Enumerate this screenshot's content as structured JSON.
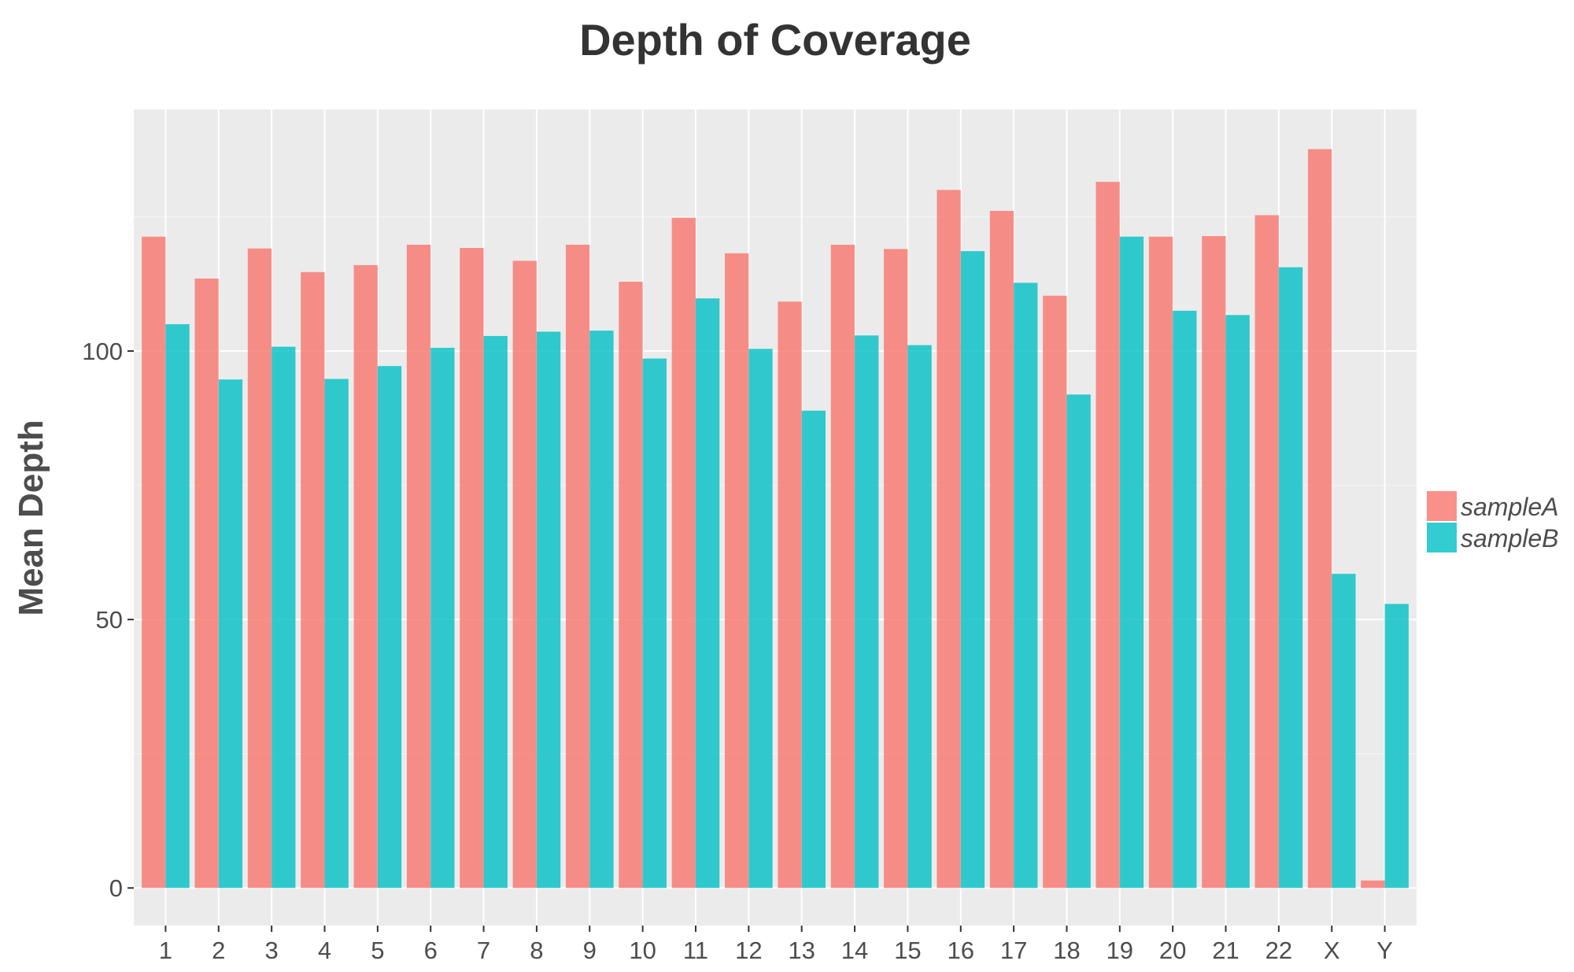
{
  "chart_data": {
    "type": "bar",
    "title": "Depth of Coverage",
    "xlabel": "",
    "ylabel": "Mean Depth",
    "ylim": [
      -7,
      145
    ],
    "yticks": [
      0,
      50,
      100
    ],
    "grid": true,
    "legend_position": "right",
    "categories": [
      "1",
      "2",
      "3",
      "4",
      "5",
      "6",
      "7",
      "8",
      "9",
      "10",
      "11",
      "12",
      "13",
      "14",
      "15",
      "16",
      "17",
      "18",
      "19",
      "20",
      "21",
      "22",
      "X",
      "Y"
    ],
    "series": [
      {
        "name": "sampleA",
        "color": "#F8766D",
        "values": [
          121.3,
          113.5,
          119.1,
          114.7,
          116.0,
          119.8,
          119.2,
          116.8,
          119.8,
          112.9,
          124.8,
          118.2,
          109.2,
          119.8,
          119.0,
          130.0,
          126.1,
          110.3,
          131.5,
          121.3,
          121.4,
          125.3,
          137.6,
          1.4
        ]
      },
      {
        "name": "sampleB",
        "color": "#00BFC4",
        "values": [
          105.0,
          94.7,
          100.8,
          94.8,
          97.2,
          100.6,
          102.8,
          103.6,
          103.8,
          98.6,
          109.8,
          100.4,
          88.9,
          102.9,
          101.1,
          118.6,
          112.7,
          91.9,
          121.3,
          107.5,
          106.7,
          115.6,
          58.5,
          52.9
        ]
      }
    ]
  }
}
